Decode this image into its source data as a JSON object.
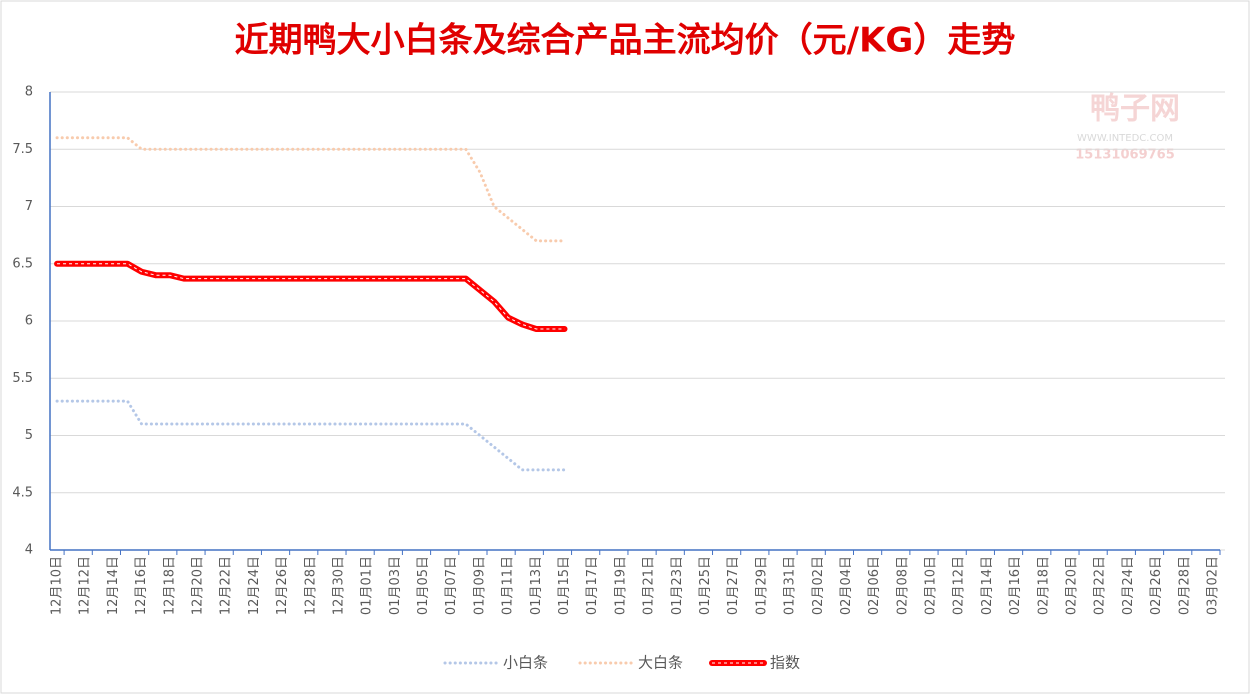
{
  "chart_data": {
    "type": "line",
    "title": "近期鸭大小白条及综合产品主流均价（元/KG）走势",
    "watermark": [
      "鸭子网",
      "WWW.INTEDC.COM",
      "15131069765"
    ],
    "categories": [
      "12月10日",
      null,
      "12月12日",
      null,
      "12月14日",
      null,
      "12月16日",
      null,
      "12月18日",
      null,
      "12月20日",
      null,
      "12月22日",
      null,
      "12月24日",
      null,
      "12月26日",
      null,
      "12月28日",
      null,
      "12月30日",
      null,
      "01月01日",
      null,
      "01月03日",
      null,
      "01月05日",
      null,
      "01月07日",
      null,
      "01月09日",
      null,
      "01月11日",
      null,
      "01月13日",
      null,
      "01月15日",
      null,
      "01月17日",
      null,
      "01月19日",
      null,
      "01月21日",
      null,
      "01月23日",
      null,
      "01月25日",
      null,
      "01月27日",
      null,
      "01月29日",
      null,
      "01月31日",
      null,
      "02月02日",
      null,
      "02月04日",
      null,
      "02月06日",
      null,
      "02月08日",
      null,
      "02月10日",
      null,
      "02月12日",
      null,
      "02月14日",
      null,
      "02月16日",
      null,
      "02月18日",
      null,
      "02月20日",
      null,
      "02月22日",
      null,
      "02月24日",
      null,
      "02月26日",
      null,
      "02月28日",
      null,
      "03月02日"
    ],
    "series": [
      {
        "name": "小白条",
        "color": "#b4c7e7",
        "style": "dotted",
        "values": [
          5.3,
          5.3,
          5.3,
          5.3,
          5.3,
          5.3,
          5.1,
          5.1,
          5.1,
          5.1,
          5.1,
          5.1,
          5.1,
          5.1,
          5.1,
          5.1,
          5.1,
          5.1,
          5.1,
          5.1,
          5.1,
          5.1,
          5.1,
          5.1,
          5.1,
          5.1,
          5.1,
          5.1,
          5.1,
          5.1,
          5.0,
          4.9,
          4.8,
          4.7,
          4.7,
          4.7,
          4.7,
          null,
          null,
          null,
          null,
          null,
          null,
          null,
          null,
          null,
          null,
          null,
          null,
          null,
          null,
          null,
          null,
          null,
          null,
          null,
          null,
          null,
          null,
          null,
          null,
          null,
          null,
          null,
          null,
          null,
          null,
          null,
          null,
          null,
          null,
          null,
          null,
          null,
          null,
          null,
          null,
          null,
          null,
          null,
          null,
          null,
          null
        ]
      },
      {
        "name": "大白条",
        "color": "#f8cbad",
        "style": "dotted",
        "values": [
          7.6,
          7.6,
          7.6,
          7.6,
          7.6,
          7.6,
          7.5,
          7.5,
          7.5,
          7.5,
          7.5,
          7.5,
          7.5,
          7.5,
          7.5,
          7.5,
          7.5,
          7.5,
          7.5,
          7.5,
          7.5,
          7.5,
          7.5,
          7.5,
          7.5,
          7.5,
          7.5,
          7.5,
          7.5,
          7.5,
          7.3,
          7.0,
          6.9,
          6.8,
          6.7,
          6.7,
          6.7,
          null,
          null,
          null,
          null,
          null,
          null,
          null,
          null,
          null,
          null,
          null,
          null,
          null,
          null,
          null,
          null,
          null,
          null,
          null,
          null,
          null,
          null,
          null,
          null,
          null,
          null,
          null,
          null,
          null,
          null,
          null,
          null,
          null,
          null,
          null,
          null,
          null,
          null,
          null,
          null,
          null,
          null,
          null,
          null,
          null,
          null
        ]
      },
      {
        "name": "指数",
        "color": "#ff0000",
        "style": "thick",
        "values": [
          6.5,
          6.5,
          6.5,
          6.5,
          6.5,
          6.5,
          6.43,
          6.4,
          6.4,
          6.37,
          6.37,
          6.37,
          6.37,
          6.37,
          6.37,
          6.37,
          6.37,
          6.37,
          6.37,
          6.37,
          6.37,
          6.37,
          6.37,
          6.37,
          6.37,
          6.37,
          6.37,
          6.37,
          6.37,
          6.37,
          6.27,
          6.17,
          6.03,
          5.97,
          5.93,
          5.93,
          5.93,
          null,
          null,
          null,
          null,
          null,
          null,
          null,
          null,
          null,
          null,
          null,
          null,
          null,
          null,
          null,
          null,
          null,
          null,
          null,
          null,
          null,
          null,
          null,
          null,
          null,
          null,
          null,
          null,
          null,
          null,
          null,
          null,
          null,
          null,
          null,
          null,
          null,
          null,
          null,
          null,
          null,
          null,
          null,
          null,
          null,
          null
        ]
      }
    ],
    "ylim": [
      4,
      8
    ],
    "yticks": [
      4,
      4.5,
      5,
      5.5,
      6,
      6.5,
      7,
      7.5,
      8
    ],
    "grid": true,
    "legend": "bottom"
  }
}
